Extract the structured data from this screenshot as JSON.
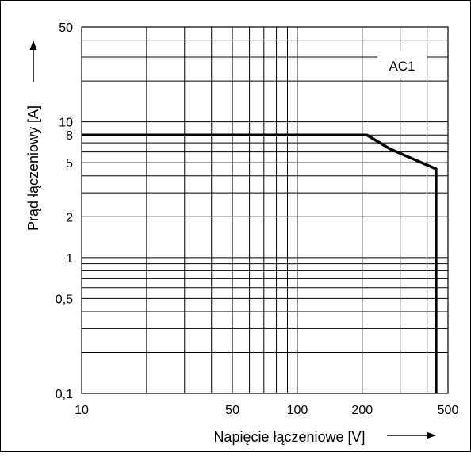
{
  "chart_data": {
    "type": "line",
    "xscale": "log",
    "yscale": "log",
    "xlim": [
      10,
      500
    ],
    "ylim": [
      0.1,
      50
    ],
    "grid": true,
    "xlabel": "Napięcie łączeniowe [V]",
    "ylabel": "Prąd łączeniowy [A]",
    "annotation": "AC1",
    "x_tick_labels": [
      {
        "v": 10,
        "label": "10"
      },
      {
        "v": 50,
        "label": "50"
      },
      {
        "v": 100,
        "label": "100"
      },
      {
        "v": 200,
        "label": "200"
      },
      {
        "v": 500,
        "label": "500"
      }
    ],
    "y_tick_labels": [
      {
        "v": 0.1,
        "label": "0,1"
      },
      {
        "v": 0.5,
        "label": "0,5"
      },
      {
        "v": 1,
        "label": "1"
      },
      {
        "v": 2,
        "label": "2"
      },
      {
        "v": 5,
        "label": "5"
      },
      {
        "v": 8,
        "label": "8"
      },
      {
        "v": 10,
        "label": "10"
      },
      {
        "v": 50,
        "label": "50"
      }
    ],
    "x_grid": [
      10,
      20,
      30,
      40,
      50,
      60,
      70,
      80,
      90,
      100,
      200,
      300,
      400,
      500
    ],
    "y_grid": [
      0.1,
      0.2,
      0.3,
      0.4,
      0.5,
      0.6,
      0.7,
      0.8,
      0.9,
      1,
      2,
      3,
      4,
      5,
      6,
      7,
      8,
      9,
      10,
      20,
      30,
      40,
      50
    ],
    "series": [
      {
        "x": [
          10,
          210,
          270,
          440,
          440
        ],
        "y": [
          8,
          8,
          6.3,
          4.5,
          0.1
        ]
      }
    ]
  }
}
